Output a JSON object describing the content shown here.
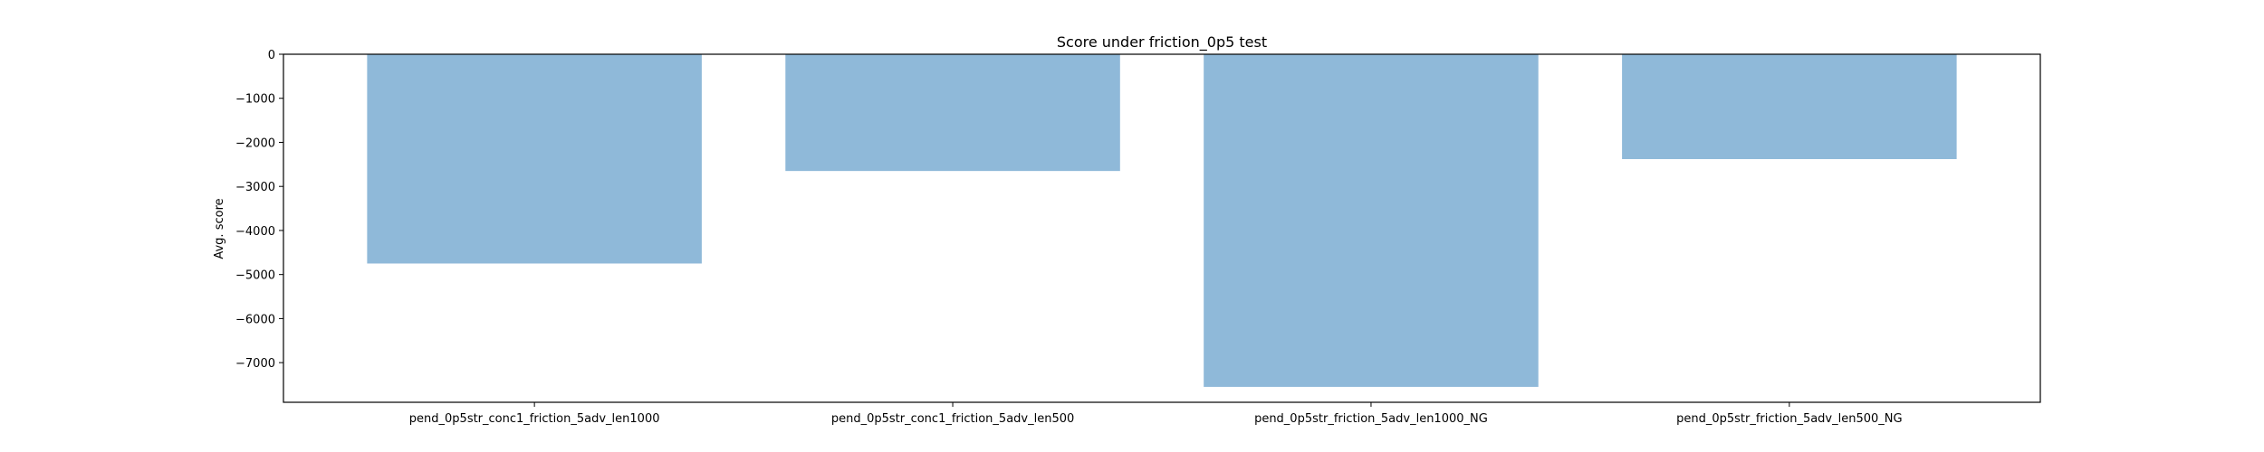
{
  "chart_data": {
    "type": "bar",
    "title": "Score under friction_0p5 test",
    "xlabel": "",
    "ylabel": "Avg. score",
    "categories": [
      "pend_0p5str_conc1_friction_5adv_len1000",
      "pend_0p5str_conc1_friction_5adv_len500",
      "pend_0p5str_friction_5adv_len1000_NG",
      "pend_0p5str_friction_5adv_len500_NG"
    ],
    "values": [
      -4750,
      -2650,
      -7550,
      -2380
    ],
    "ylim": [
      -7900,
      0
    ],
    "yticks": [
      0,
      -1000,
      -2000,
      -3000,
      -4000,
      -5000,
      -6000,
      -7000
    ],
    "ytick_labels": [
      "0",
      "−1000",
      "−2000",
      "−3000",
      "−4000",
      "−5000",
      "−6000",
      "−7000"
    ],
    "grid": false,
    "legend": "none",
    "colors": {
      "bar": "#8fb9d9",
      "axis": "#000000",
      "background": "#ffffff"
    }
  }
}
